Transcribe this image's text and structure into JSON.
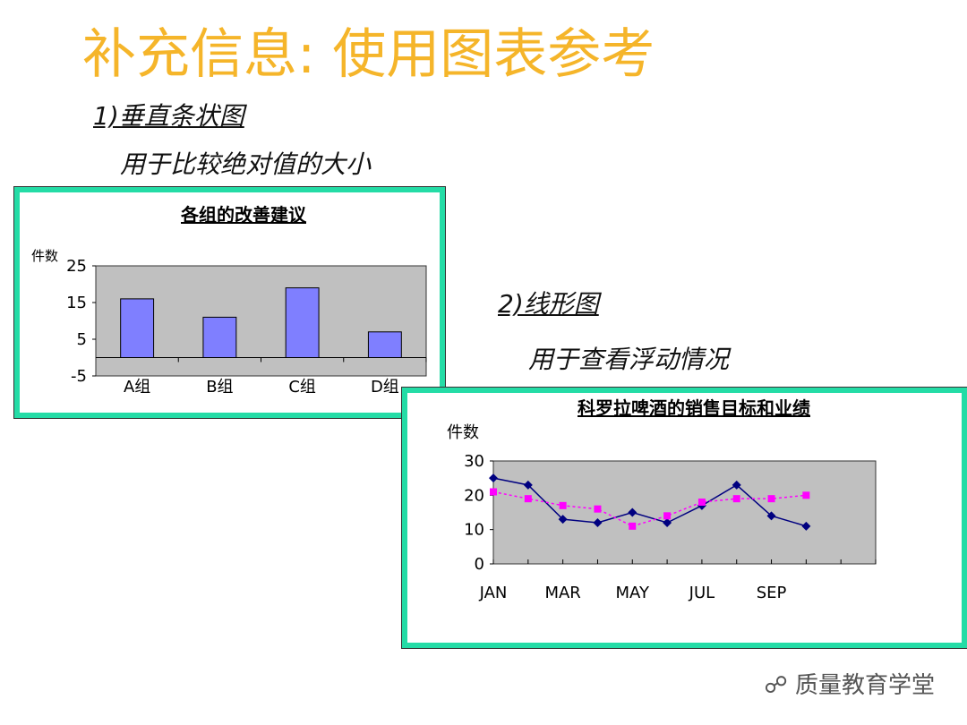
{
  "title": "补充信息: 使用图表参考",
  "bar_section": {
    "heading": "1)垂直条状图",
    "note": "用于比较绝对值的大小"
  },
  "line_section": {
    "heading": "2)线形图",
    "note": "用于查看浮动情况"
  },
  "watermark": "质量教育学堂",
  "chart_data": [
    {
      "type": "bar",
      "title": "各组的改善建议",
      "y_label": "件数",
      "categories": [
        "A组",
        "B组",
        "C组",
        "D组"
      ],
      "values": [
        16,
        11,
        19,
        7
      ],
      "color": "#7f7fff",
      "ylim": [
        -5,
        25
      ],
      "yticks": [
        -5,
        5,
        15,
        25
      ],
      "plot_background": "#c0c0c0"
    },
    {
      "type": "line",
      "title": "科罗拉啤酒的销售目标和业绩",
      "y_label": "件数",
      "categories": [
        "JAN",
        null,
        "MAR",
        null,
        "MAY",
        null,
        "JUL",
        null,
        "SEP",
        null,
        null,
        null
      ],
      "series": [
        {
          "color": "#000080",
          "values": [
            25,
            23,
            13,
            12,
            15,
            12,
            17,
            23,
            14,
            11,
            null,
            null
          ]
        },
        {
          "color": "#ff00ff",
          "values": [
            21,
            19,
            17,
            16,
            11,
            14,
            18,
            19,
            19,
            20,
            null,
            null
          ]
        }
      ],
      "ylim": [
        0,
        30
      ],
      "yticks": [
        0,
        10,
        20,
        30
      ],
      "plot_background": "#c0c0c0"
    }
  ]
}
